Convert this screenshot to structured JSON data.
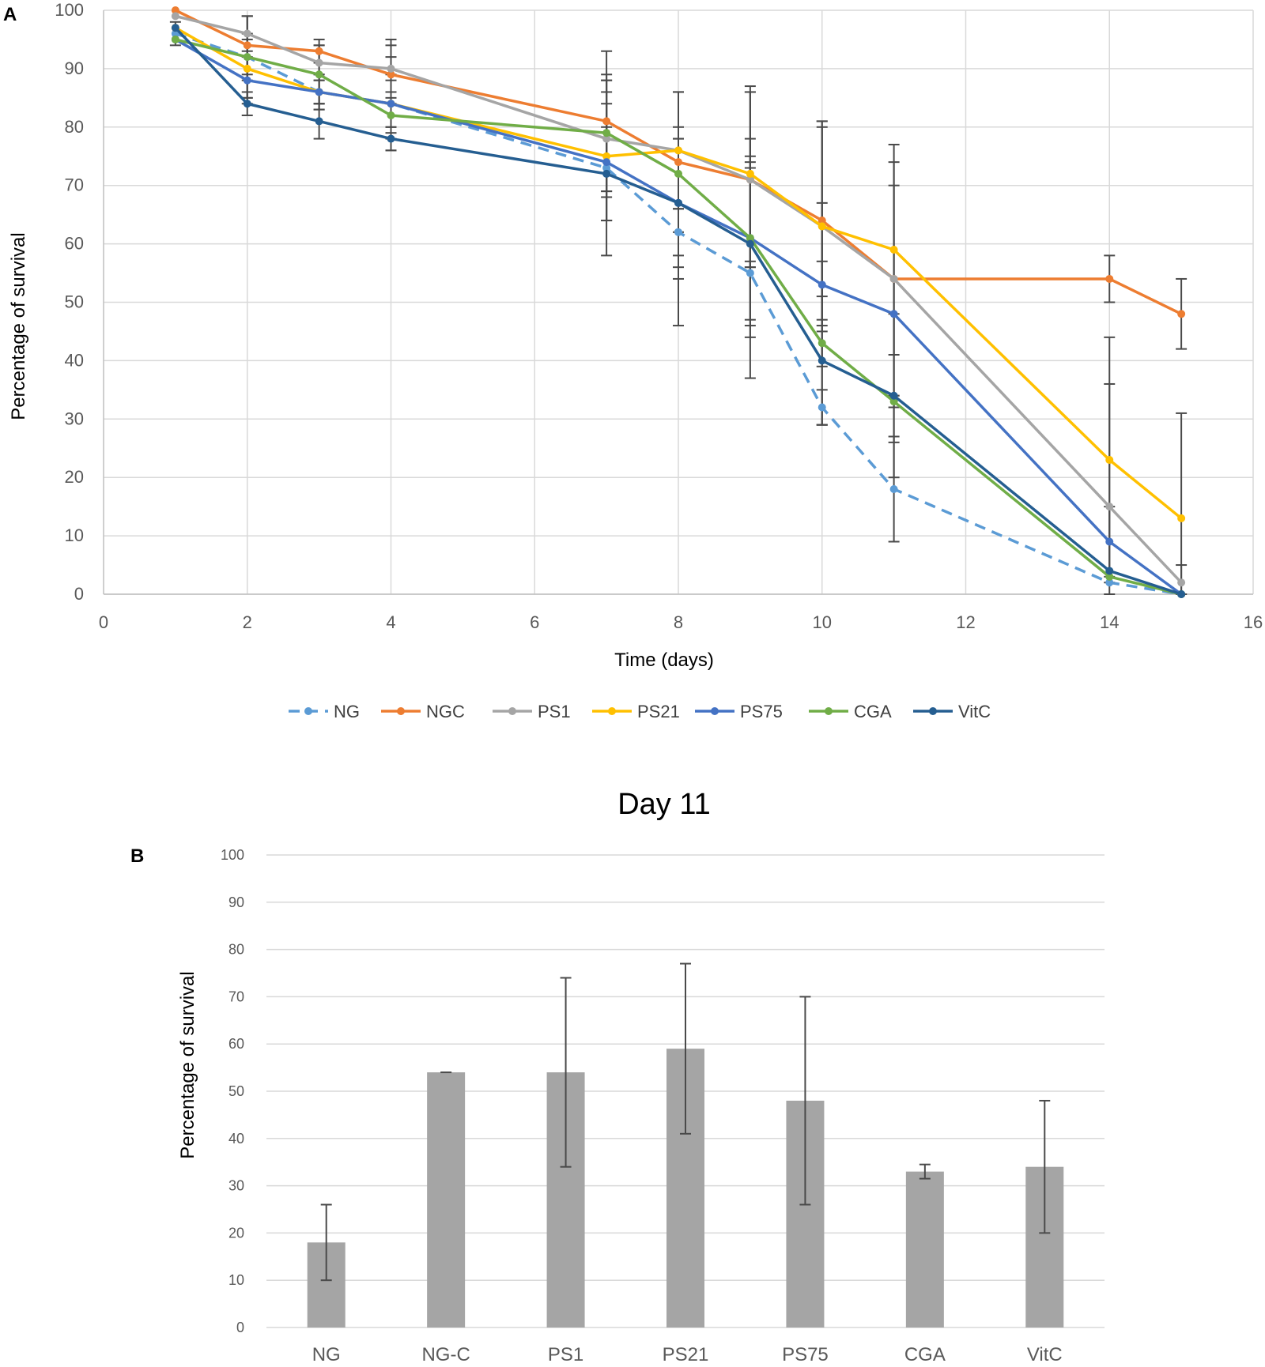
{
  "chart_data": [
    {
      "panel_label": "A",
      "type": "line",
      "title": "",
      "xlabel": "Time (days)",
      "ylabel": "Percentage of survival",
      "xlim": [
        0,
        16
      ],
      "ylim": [
        0,
        100
      ],
      "xticks": [
        0,
        2,
        4,
        6,
        8,
        10,
        12,
        14,
        16
      ],
      "yticks": [
        0,
        10,
        20,
        30,
        40,
        50,
        60,
        70,
        80,
        90,
        100
      ],
      "grid": true,
      "legend_position": "bottom",
      "x": [
        1,
        2,
        3,
        4,
        7,
        8,
        9,
        10,
        11,
        14,
        15
      ],
      "series": [
        {
          "name": "NG",
          "color": "#5B9BD5",
          "dashed": true,
          "values": [
            96,
            92,
            86,
            84,
            73,
            62,
            55,
            32,
            18,
            2,
            0
          ],
          "errors": [
            2,
            7,
            2,
            8,
            15,
            16,
            18,
            3,
            9,
            0,
            0
          ]
        },
        {
          "name": "NGC",
          "color": "#ED7D31",
          "dashed": false,
          "values": [
            100,
            94,
            93,
            89,
            81,
            74,
            71,
            64,
            54,
            54,
            48
          ],
          "errors": [
            0,
            5,
            2,
            5,
            12,
            12,
            15,
            17,
            0,
            4,
            6
          ]
        },
        {
          "name": "PS1",
          "color": "#A5A5A5",
          "dashed": false,
          "values": [
            99,
            96,
            91,
            90,
            78,
            76,
            71,
            63,
            54,
            15,
            2
          ],
          "errors": [
            0,
            3,
            3,
            5,
            10,
            10,
            15,
            18,
            20,
            21,
            3
          ]
        },
        {
          "name": "PS21",
          "color": "#FFC000",
          "dashed": false,
          "values": [
            97,
            90,
            86,
            84,
            75,
            76,
            72,
            63,
            59,
            23,
            13
          ],
          "errors": [
            0,
            5,
            3,
            5,
            11,
            10,
            15,
            17,
            18,
            21,
            18
          ]
        },
        {
          "name": "PS75",
          "color": "#4472C4",
          "dashed": false,
          "values": [
            95,
            88,
            86,
            84,
            74,
            67,
            61,
            53,
            48,
            9,
            0
          ],
          "errors": [
            0,
            4,
            3,
            4,
            10,
            11,
            14,
            14,
            22,
            6,
            0
          ]
        },
        {
          "name": "CGA",
          "color": "#70AD47",
          "dashed": false,
          "values": [
            95,
            92,
            89,
            82,
            79,
            72,
            61,
            43,
            33,
            3,
            0
          ],
          "errors": [
            0,
            4,
            5,
            4,
            10,
            14,
            17,
            14,
            1,
            0,
            0
          ]
        },
        {
          "name": "VitC",
          "color": "#255E91",
          "dashed": false,
          "values": [
            97,
            84,
            81,
            78,
            72,
            67,
            60,
            40,
            34,
            4,
            0
          ],
          "errors": [
            0,
            2,
            3,
            2,
            8,
            13,
            14,
            11,
            14,
            0,
            0
          ]
        }
      ]
    },
    {
      "panel_label": "B",
      "type": "bar",
      "title": "Day 11",
      "xlabel": "",
      "ylabel": "Percentage of survival",
      "ylim": [
        0,
        100
      ],
      "yticks": [
        0,
        10,
        20,
        30,
        40,
        50,
        60,
        70,
        80,
        90,
        100
      ],
      "grid": true,
      "bar_color": "#A5A5A5",
      "categories": [
        "NG",
        "NG-C",
        "PS1",
        "PS21",
        "PS75",
        "CGA",
        "VitC"
      ],
      "values": [
        18,
        54,
        54,
        59,
        48,
        33,
        34
      ],
      "errors": [
        8,
        0,
        20,
        18,
        22,
        1.5,
        14
      ]
    }
  ]
}
